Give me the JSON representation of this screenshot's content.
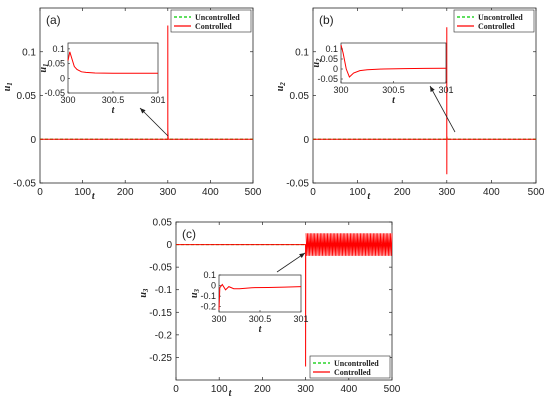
{
  "chart_data": [
    {
      "type": "line",
      "panel_label": "(a)",
      "xlabel": "t",
      "ylabel": "u1",
      "xlim": [
        0,
        500
      ],
      "ylim": [
        -0.05,
        0.15
      ],
      "xticks": [
        0,
        100,
        200,
        300,
        400,
        500
      ],
      "yticks": [
        -0.05,
        0,
        0.05,
        0.1
      ],
      "legend": {
        "position": "top-right",
        "entries": [
          "Uncontrolled",
          "Controlled"
        ]
      },
      "series": [
        {
          "name": "Uncontrolled",
          "color": "#00cc00",
          "style": "dashed",
          "x": [
            0,
            500
          ],
          "y": [
            0,
            0
          ]
        },
        {
          "name": "Controlled",
          "color": "#ff0000",
          "style": "solid",
          "x": [
            0,
            300,
            300.02,
            300.1,
            301,
            500
          ],
          "y": [
            0,
            0,
            0.13,
            0.01,
            0,
            0
          ]
        }
      ],
      "inset": {
        "xlabel": "t",
        "ylabel": "u1",
        "xlim": [
          300,
          301
        ],
        "ylim": [
          -0.05,
          0.12
        ],
        "xticks": [
          300,
          300.5,
          301
        ],
        "yticks": [
          -0.05,
          0,
          0.05,
          0.1
        ],
        "series": [
          {
            "name": "Controlled",
            "color": "#ff0000",
            "x": [
              300,
              300.02,
              300.04,
              300.07,
              300.1,
              300.15,
              300.2,
              300.3,
              300.5,
              300.7,
              301
            ],
            "y": [
              0.06,
              0.09,
              0.07,
              0.04,
              0.03,
              0.022,
              0.02,
              0.018,
              0.017,
              0.017,
              0.017
            ]
          }
        ]
      }
    },
    {
      "type": "line",
      "panel_label": "(b)",
      "xlabel": "t",
      "ylabel": "u2",
      "xlim": [
        0,
        500
      ],
      "ylim": [
        -0.05,
        0.15
      ],
      "xticks": [
        0,
        100,
        200,
        300,
        400,
        500
      ],
      "yticks": [
        -0.05,
        0,
        0.05,
        0.1
      ],
      "legend": {
        "position": "top-right",
        "entries": [
          "Uncontrolled",
          "Controlled"
        ]
      },
      "series": [
        {
          "name": "Uncontrolled",
          "color": "#00cc00",
          "style": "dashed",
          "x": [
            0,
            500
          ],
          "y": [
            0,
            0
          ]
        },
        {
          "name": "Controlled",
          "color": "#ff0000",
          "style": "solid",
          "x": [
            0,
            299.9,
            300,
            300.05,
            300.15,
            301,
            500
          ],
          "y": [
            0,
            0,
            0.128,
            -0.04,
            0.003,
            0,
            0
          ]
        }
      ],
      "inset": {
        "xlabel": "t",
        "ylabel": "u2",
        "xlim": [
          300,
          301
        ],
        "ylim": [
          -0.07,
          0.13
        ],
        "xticks": [
          300,
          300.5,
          301
        ],
        "yticks": [
          -0.05,
          0,
          0.05,
          0.1
        ],
        "series": [
          {
            "name": "Controlled",
            "color": "#ff0000",
            "x": [
              300,
              300.02,
              300.05,
              300.08,
              300.12,
              300.18,
              300.25,
              300.4,
              300.6,
              300.8,
              301
            ],
            "y": [
              0.12,
              0.08,
              0.0,
              -0.04,
              -0.02,
              -0.008,
              -0.004,
              0.0,
              0.002,
              0.003,
              0.004
            ]
          }
        ]
      }
    },
    {
      "type": "line",
      "panel_label": "(c)",
      "xlabel": "t",
      "ylabel": "u3",
      "xlim": [
        0,
        500
      ],
      "ylim": [
        -0.3,
        0.05
      ],
      "xticks": [
        0,
        100,
        200,
        300,
        400,
        500
      ],
      "yticks": [
        -0.25,
        -0.2,
        -0.15,
        -0.1,
        -0.05,
        0,
        0.05
      ],
      "legend": {
        "position": "bottom-right",
        "entries": [
          "Uncontrolled",
          "Controlled"
        ]
      },
      "series": [
        {
          "name": "Uncontrolled",
          "color": "#00cc00",
          "style": "dashed",
          "x": [
            0,
            500
          ],
          "y": [
            0,
            0
          ]
        },
        {
          "name": "Controlled",
          "color": "#ff0000",
          "style": "solid",
          "x": [
            0,
            299.9,
            300,
            300.3,
            301,
            500
          ],
          "y": [
            0,
            0,
            -0.27,
            -0.02,
            0.0,
            0.0
          ],
          "oscillation": {
            "x_from": 301,
            "x_to": 500,
            "amplitude": 0.025,
            "cycles": 60
          }
        }
      ],
      "inset": {
        "xlabel": "t",
        "ylabel": "u3",
        "xlim": [
          300,
          301
        ],
        "ylim": [
          -0.25,
          0.1
        ],
        "xticks": [
          300,
          300.5,
          301
        ],
        "yticks": [
          -0.2,
          -0.1,
          0,
          0.1
        ],
        "series": [
          {
            "name": "Controlled",
            "color": "#ff0000",
            "x": [
              300,
              300.01,
              300.04,
              300.08,
              300.12,
              300.18,
              300.25,
              300.4,
              300.6,
              300.8,
              301
            ],
            "y": [
              -0.23,
              -0.02,
              0.01,
              -0.04,
              -0.01,
              -0.03,
              -0.03,
              -0.02,
              -0.018,
              -0.015,
              -0.01
            ]
          }
        ]
      }
    }
  ]
}
